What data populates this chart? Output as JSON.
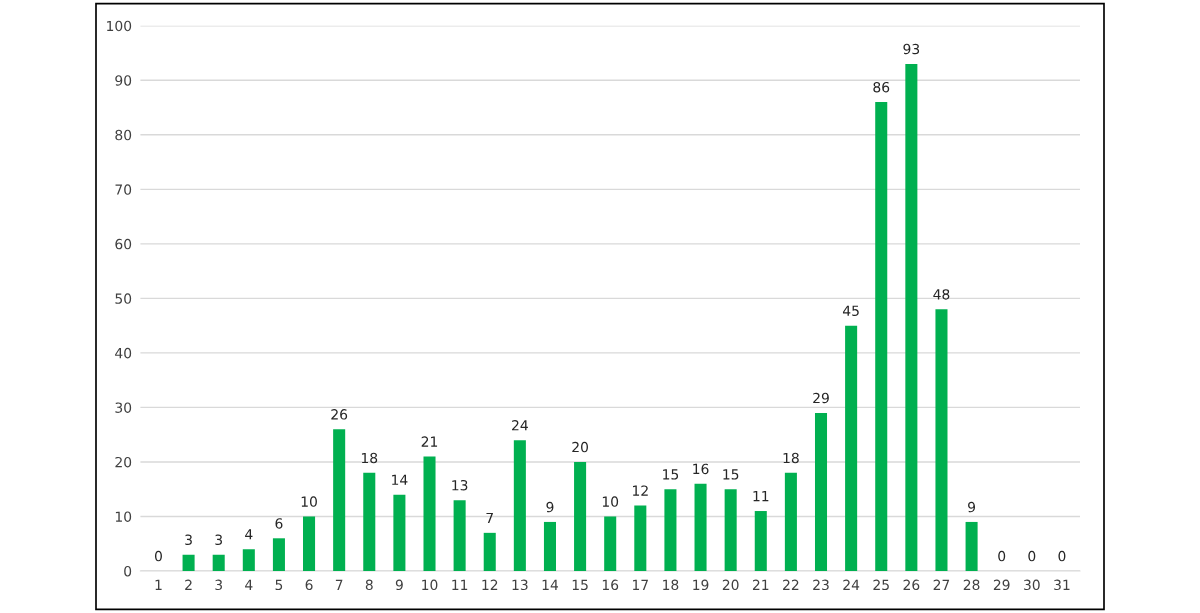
{
  "chart_data": {
    "type": "bar",
    "categories": [
      "1",
      "2",
      "3",
      "4",
      "5",
      "6",
      "7",
      "8",
      "9",
      "10",
      "11",
      "12",
      "13",
      "14",
      "15",
      "16",
      "17",
      "18",
      "19",
      "20",
      "21",
      "22",
      "23",
      "24",
      "25",
      "26",
      "27",
      "28",
      "29",
      "30",
      "31"
    ],
    "values": [
      0,
      3,
      3,
      4,
      6,
      10,
      26,
      18,
      14,
      21,
      13,
      7,
      24,
      9,
      20,
      10,
      12,
      15,
      16,
      15,
      11,
      18,
      29,
      45,
      86,
      93,
      48,
      9,
      0,
      0,
      0
    ],
    "color": "#00b050",
    "ylim": [
      0,
      100
    ],
    "yticks": [
      0,
      10,
      20,
      30,
      40,
      50,
      60,
      70,
      80,
      90,
      100
    ],
    "grid": "y",
    "data_labels": true
  }
}
